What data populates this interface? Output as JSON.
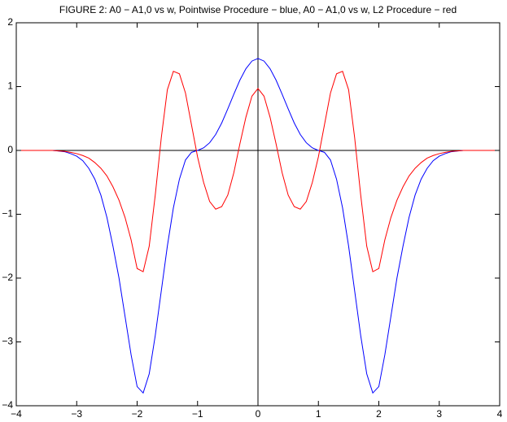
{
  "chart_data": {
    "type": "line",
    "title": "FIGURE 2: A0 − A1,0 vs w, Pointwise Procedure − blue, A0 − A1,0 vs w, L2 Procedure − red",
    "x": [
      -4,
      -3.9,
      -3.8,
      -3.7,
      -3.6,
      -3.5,
      -3.4,
      -3.3,
      -3.2,
      -3.1,
      -3,
      -2.9,
      -2.8,
      -2.7,
      -2.6,
      -2.5,
      -2.4,
      -2.3,
      -2.2,
      -2.1,
      -2,
      -1.9,
      -1.8,
      -1.7,
      -1.6,
      -1.5,
      -1.4,
      -1.3,
      -1.2,
      -1.1,
      -1,
      -0.9,
      -0.8,
      -0.7,
      -0.6,
      -0.5,
      -0.4,
      -0.3,
      -0.2,
      -0.1,
      0,
      0.1,
      0.2,
      0.3,
      0.4,
      0.5,
      0.6,
      0.7,
      0.8,
      0.9,
      1,
      1.1,
      1.2,
      1.3,
      1.4,
      1.5,
      1.6,
      1.7,
      1.8,
      1.9,
      2,
      2.1,
      2.2,
      2.3,
      2.4,
      2.5,
      2.6,
      2.7,
      2.8,
      2.9,
      3,
      3.1,
      3.2,
      3.3,
      3.4,
      3.5,
      3.6,
      3.7,
      3.8,
      3.9,
      4
    ],
    "series": [
      {
        "color": "#0000ff",
        "values": [
          0,
          0,
          0,
          0,
          0,
          0,
          0,
          -0.01,
          -0.02,
          -0.05,
          -0.09,
          -0.16,
          -0.28,
          -0.45,
          -0.7,
          -1.05,
          -1.5,
          -2.0,
          -2.6,
          -3.2,
          -3.7,
          -3.8,
          -3.5,
          -2.9,
          -2.2,
          -1.5,
          -0.9,
          -0.45,
          -0.15,
          -0.03,
          0,
          0.04,
          0.12,
          0.25,
          0.43,
          0.65,
          0.88,
          1.1,
          1.28,
          1.4,
          1.44,
          1.4,
          1.28,
          1.1,
          0.88,
          0.65,
          0.43,
          0.25,
          0.12,
          0.04,
          0,
          -0.03,
          -0.15,
          -0.45,
          -0.9,
          -1.5,
          -2.2,
          -2.9,
          -3.5,
          -3.8,
          -3.7,
          -3.2,
          -2.6,
          -2.0,
          -1.5,
          -1.05,
          -0.7,
          -0.45,
          -0.28,
          -0.16,
          -0.09,
          -0.05,
          -0.02,
          -0.01,
          0,
          0,
          0,
          0,
          0,
          0,
          0
        ]
      },
      {
        "color": "#ff0000",
        "values": [
          0,
          0,
          0,
          0,
          0,
          0,
          0,
          -0.008,
          -0.015,
          -0.03,
          -0.05,
          -0.08,
          -0.12,
          -0.19,
          -0.28,
          -0.4,
          -0.57,
          -0.78,
          -1.05,
          -1.4,
          -1.85,
          -1.9,
          -1.5,
          -0.7,
          0.2,
          0.95,
          1.24,
          1.2,
          0.9,
          0.4,
          -0.1,
          -0.5,
          -0.8,
          -0.92,
          -0.88,
          -0.7,
          -0.35,
          0.1,
          0.52,
          0.85,
          0.97,
          0.85,
          0.52,
          0.1,
          -0.35,
          -0.7,
          -0.88,
          -0.92,
          -0.8,
          -0.5,
          -0.1,
          0.4,
          0.9,
          1.2,
          1.24,
          0.95,
          0.2,
          -0.7,
          -1.5,
          -1.9,
          -1.85,
          -1.4,
          -1.05,
          -0.78,
          -0.57,
          -0.4,
          -0.28,
          -0.19,
          -0.12,
          -0.08,
          -0.05,
          -0.03,
          -0.015,
          -0.008,
          0,
          0,
          0,
          0,
          0,
          0,
          0
        ]
      }
    ],
    "xlim": [
      -4,
      4
    ],
    "xticks": [
      {
        "value": -4,
        "label": "−4"
      },
      {
        "value": -3,
        "label": "−3"
      },
      {
        "value": -2,
        "label": "−2"
      },
      {
        "value": -1,
        "label": "−1"
      },
      0,
      1,
      2,
      3,
      4
    ],
    "ylim": [
      -4,
      2
    ],
    "yticks": [
      {
        "value": -4,
        "label": "−4"
      },
      {
        "value": -3,
        "label": "−3"
      },
      {
        "value": -2,
        "label": "−2"
      },
      {
        "value": -1,
        "label": "−1"
      },
      0,
      1,
      2
    ],
    "grid": false
  }
}
